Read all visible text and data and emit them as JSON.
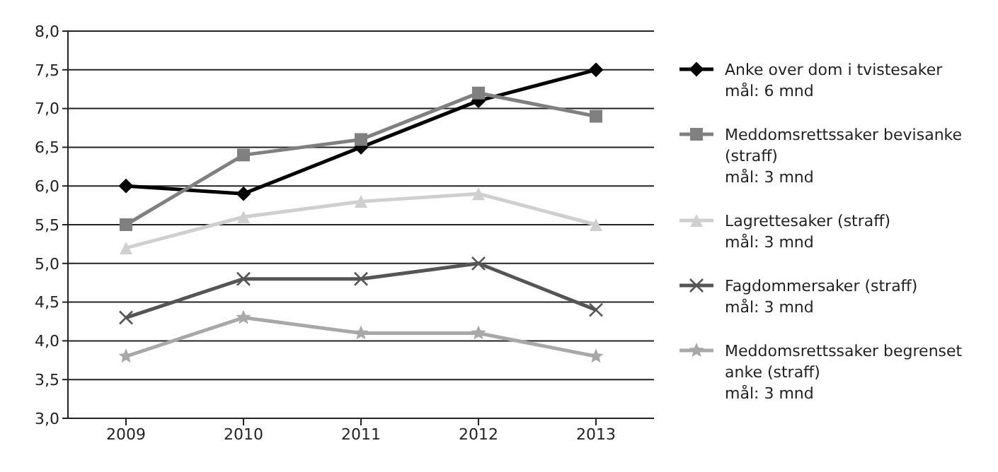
{
  "chart_data": {
    "type": "line",
    "categories": [
      "2009",
      "2010",
      "2011",
      "2012",
      "2013"
    ],
    "series": [
      {
        "name": "Anke over dom i tvistesaker\nmål: 6 mnd",
        "color": "#000000",
        "marker": "diamond",
        "values": [
          6.0,
          5.9,
          6.5,
          7.1,
          7.5
        ]
      },
      {
        "name": "Meddomsrettssaker bevisanke (straff)\nmål: 3 mnd",
        "color": "#808080",
        "marker": "square",
        "values": [
          5.5,
          6.4,
          6.6,
          7.2,
          6.9
        ]
      },
      {
        "name": "Lagrettesaker (straff)\nmål: 3 mnd",
        "color": "#cfcfcf",
        "marker": "triangle",
        "values": [
          5.2,
          5.6,
          5.8,
          5.9,
          5.5
        ]
      },
      {
        "name": "Fagdommersaker (straff)\nmål: 3 mnd",
        "color": "#555555",
        "marker": "cross",
        "values": [
          4.3,
          4.8,
          4.8,
          5.0,
          4.4
        ]
      },
      {
        "name": "Meddomsrettssaker begrenset anke (straff)\nmål: 3 mnd",
        "color": "#a8a8a8",
        "marker": "star",
        "values": [
          3.8,
          4.3,
          4.1,
          4.1,
          3.8
        ]
      }
    ],
    "ylim": [
      3.0,
      8.0
    ],
    "yticks": [
      {
        "value": 3.0,
        "label": "3,0"
      },
      {
        "value": 3.5,
        "label": "3,5"
      },
      {
        "value": 4.0,
        "label": "4,0"
      },
      {
        "value": 4.5,
        "label": "4,5"
      },
      {
        "value": 5.0,
        "label": "5,0"
      },
      {
        "value": 5.5,
        "label": "5,5"
      },
      {
        "value": 6.0,
        "label": "6,0"
      },
      {
        "value": 6.5,
        "label": "6,5"
      },
      {
        "value": 7.0,
        "label": "7,0"
      },
      {
        "value": 7.5,
        "label": "7,5"
      },
      {
        "value": 8.0,
        "label": "8,0"
      }
    ],
    "grid": "y",
    "legend": "right",
    "line_style": "solid"
  }
}
